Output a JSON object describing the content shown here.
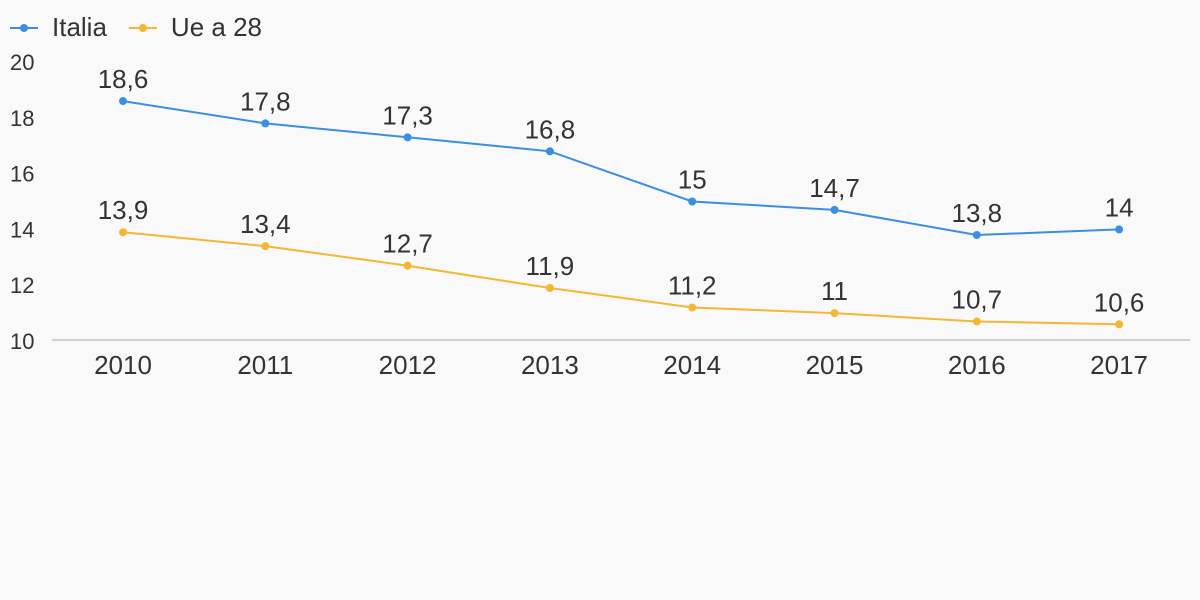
{
  "chart_data": {
    "type": "line",
    "categories": [
      "2010",
      "2011",
      "2012",
      "2013",
      "2014",
      "2015",
      "2016",
      "2017"
    ],
    "series": [
      {
        "name": "Italia",
        "color": "#3a8ee6",
        "values": [
          18.6,
          17.8,
          17.3,
          16.8,
          15,
          14.7,
          13.8,
          14
        ],
        "labels": [
          "18,6",
          "17,8",
          "17,3",
          "16,8",
          "15",
          "14,7",
          "13,8",
          "14"
        ]
      },
      {
        "name": "Ue a 28",
        "color": "#f5b731",
        "values": [
          13.9,
          13.4,
          12.7,
          11.9,
          11.2,
          11,
          10.7,
          10.6
        ],
        "labels": [
          "13,9",
          "13,4",
          "12,7",
          "11,9",
          "11,2",
          "11",
          "10,7",
          "10,6"
        ]
      }
    ],
    "yticks": [
      "10",
      "12",
      "14",
      "16",
      "18",
      "20"
    ],
    "ylim": [
      10,
      20
    ],
    "grid": false,
    "legend": "top-left"
  }
}
